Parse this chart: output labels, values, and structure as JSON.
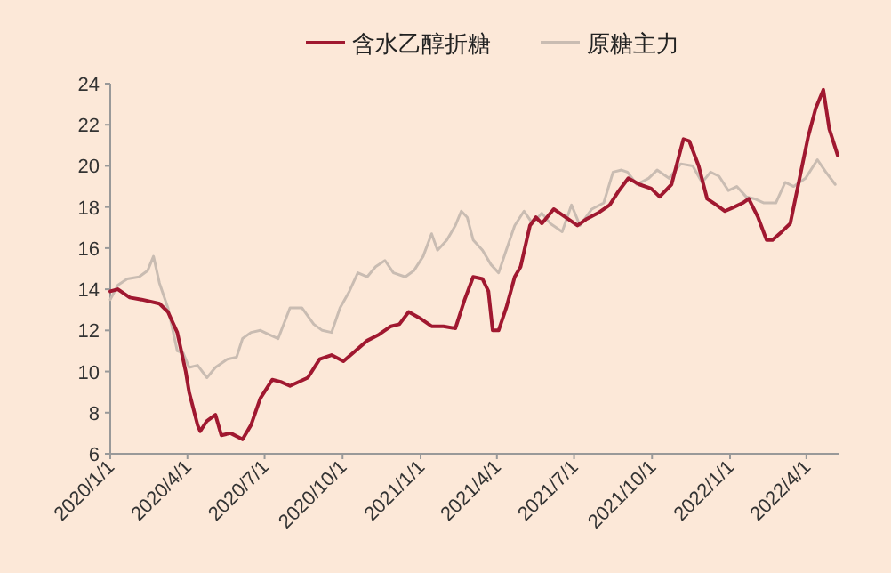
{
  "chart_data": {
    "type": "line",
    "legend": "top",
    "xlim": [
      "2020-01-01",
      "2022-05-10"
    ],
    "ylim": [
      6,
      24
    ],
    "xticks": [
      {
        "value": "2020-01-01",
        "label": "2020/1/1"
      },
      {
        "value": "2020-04-01",
        "label": "2020/4/1"
      },
      {
        "value": "2020-07-01",
        "label": "2020/7/1"
      },
      {
        "value": "2020-10-01",
        "label": "2020/10/1"
      },
      {
        "value": "2021-01-01",
        "label": "2021/1/1"
      },
      {
        "value": "2021-04-01",
        "label": "2021/4/1"
      },
      {
        "value": "2021-07-01",
        "label": "2021/7/1"
      },
      {
        "value": "2021-10-01",
        "label": "2021/10/1"
      },
      {
        "value": "2022-01-01",
        "label": "2022/1/1"
      },
      {
        "value": "2022-04-01",
        "label": "2022/4/1"
      }
    ],
    "yticks": [
      6,
      8,
      10,
      12,
      14,
      16,
      18,
      20,
      22,
      24
    ],
    "series": [
      {
        "name": "含水乙醇折糖",
        "color": "#a01830",
        "x": [
          "2020-01-01",
          "2020-01-10",
          "2020-01-24",
          "2020-02-07",
          "2020-02-28",
          "2020-03-09",
          "2020-03-20",
          "2020-03-30",
          "2020-04-03",
          "2020-04-13",
          "2020-04-16",
          "2020-04-24",
          "2020-05-04",
          "2020-05-11",
          "2020-05-22",
          "2020-06-05",
          "2020-06-15",
          "2020-06-26",
          "2020-07-10",
          "2020-07-20",
          "2020-07-31",
          "2020-08-21",
          "2020-09-04",
          "2020-09-18",
          "2020-10-02",
          "2020-10-16",
          "2020-10-30",
          "2020-11-13",
          "2020-11-27",
          "2020-12-07",
          "2020-12-18",
          "2020-12-31",
          "2021-01-14",
          "2021-01-28",
          "2021-02-11",
          "2021-02-22",
          "2021-03-04",
          "2021-03-15",
          "2021-03-22",
          "2021-03-27",
          "2021-04-03",
          "2021-04-12",
          "2021-04-22",
          "2021-04-29",
          "2021-05-10",
          "2021-05-17",
          "2021-05-24",
          "2021-06-07",
          "2021-06-21",
          "2021-07-05",
          "2021-07-15",
          "2021-07-29",
          "2021-08-12",
          "2021-08-23",
          "2021-09-03",
          "2021-09-16",
          "2021-09-30",
          "2021-10-10",
          "2021-10-24",
          "2021-11-07",
          "2021-11-14",
          "2021-11-25",
          "2021-12-05",
          "2021-12-16",
          "2021-12-26",
          "2022-01-06",
          "2022-01-16",
          "2022-01-23",
          "2022-02-03",
          "2022-02-13",
          "2022-02-20",
          "2022-03-03",
          "2022-03-13",
          "2022-03-24",
          "2022-04-03",
          "2022-04-12",
          "2022-04-21",
          "2022-04-28",
          "2022-05-08"
        ],
        "values": [
          13.9,
          14.0,
          13.6,
          13.5,
          13.3,
          12.9,
          11.9,
          10.0,
          9.0,
          7.4,
          7.1,
          7.6,
          7.9,
          6.9,
          7.0,
          6.7,
          7.4,
          8.7,
          9.6,
          9.5,
          9.3,
          9.7,
          10.6,
          10.8,
          10.5,
          11.0,
          11.5,
          11.8,
          12.2,
          12.3,
          12.9,
          12.6,
          12.2,
          12.2,
          12.1,
          13.5,
          14.6,
          14.5,
          13.9,
          12.0,
          12.0,
          13.1,
          14.6,
          15.1,
          17.1,
          17.5,
          17.2,
          17.9,
          17.5,
          17.1,
          17.4,
          17.7,
          18.1,
          18.8,
          19.4,
          19.1,
          18.9,
          18.5,
          19.1,
          21.3,
          21.2,
          20.0,
          18.4,
          18.1,
          17.8,
          18.0,
          18.2,
          18.4,
          17.5,
          16.4,
          16.4,
          16.8,
          17.2,
          19.4,
          21.4,
          22.8,
          23.7,
          21.8,
          20.5
        ]
      },
      {
        "name": "原糖主力",
        "color": "#c9bcb2",
        "x": [
          "2020-01-01",
          "2020-01-10",
          "2020-01-21",
          "2020-02-04",
          "2020-02-14",
          "2020-02-21",
          "2020-02-28",
          "2020-03-09",
          "2020-03-20",
          "2020-03-27",
          "2020-04-03",
          "2020-04-13",
          "2020-04-24",
          "2020-05-04",
          "2020-05-18",
          "2020-05-29",
          "2020-06-05",
          "2020-06-15",
          "2020-06-26",
          "2020-07-06",
          "2020-07-17",
          "2020-07-31",
          "2020-08-14",
          "2020-08-28",
          "2020-09-07",
          "2020-09-18",
          "2020-09-28",
          "2020-10-09",
          "2020-10-19",
          "2020-10-30",
          "2020-11-09",
          "2020-11-20",
          "2020-11-30",
          "2020-12-14",
          "2020-12-24",
          "2021-01-04",
          "2021-01-14",
          "2021-01-21",
          "2021-02-01",
          "2021-02-11",
          "2021-02-18",
          "2021-02-25",
          "2021-03-04",
          "2021-03-15",
          "2021-03-25",
          "2021-04-03",
          "2021-04-12",
          "2021-04-22",
          "2021-05-03",
          "2021-05-13",
          "2021-05-24",
          "2021-06-03",
          "2021-06-17",
          "2021-06-28",
          "2021-07-08",
          "2021-07-22",
          "2021-08-05",
          "2021-08-16",
          "2021-08-26",
          "2021-09-02",
          "2021-09-13",
          "2021-09-27",
          "2021-10-07",
          "2021-10-21",
          "2021-11-04",
          "2021-11-18",
          "2021-11-29",
          "2021-12-09",
          "2021-12-19",
          "2021-12-30",
          "2022-01-09",
          "2022-01-20",
          "2022-01-30",
          "2022-02-10",
          "2022-02-24",
          "2022-03-07",
          "2022-03-17",
          "2022-03-31",
          "2022-04-14",
          "2022-04-24",
          "2022-05-05"
        ],
        "values": [
          13.5,
          14.2,
          14.5,
          14.6,
          14.9,
          15.6,
          14.3,
          13.1,
          11.0,
          10.9,
          10.2,
          10.3,
          9.7,
          10.2,
          10.6,
          10.7,
          11.6,
          11.9,
          12.0,
          11.8,
          11.6,
          13.1,
          13.1,
          12.3,
          12.0,
          11.9,
          13.1,
          13.9,
          14.8,
          14.6,
          15.1,
          15.4,
          14.8,
          14.6,
          14.9,
          15.6,
          16.7,
          15.9,
          16.4,
          17.1,
          17.8,
          17.5,
          16.4,
          15.9,
          15.2,
          14.8,
          15.9,
          17.1,
          17.8,
          17.2,
          17.7,
          17.2,
          16.8,
          18.1,
          17.1,
          17.9,
          18.2,
          19.7,
          19.8,
          19.7,
          19.1,
          19.4,
          19.8,
          19.4,
          20.1,
          20.0,
          19.2,
          19.7,
          19.5,
          18.8,
          19.0,
          18.5,
          18.4,
          18.2,
          18.2,
          19.2,
          19.0,
          19.4,
          20.3,
          19.7,
          19.1
        ]
      }
    ]
  }
}
